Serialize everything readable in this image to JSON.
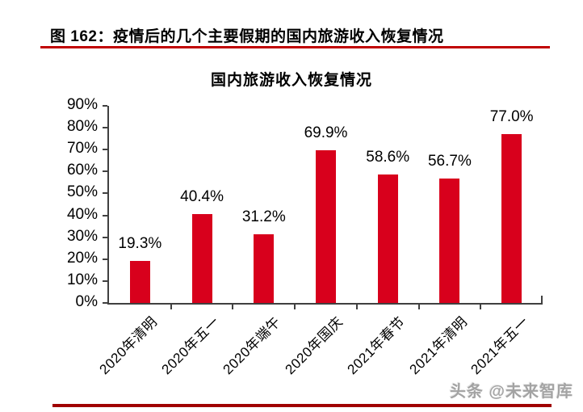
{
  "header": {
    "caption": "图 162：疫情后的几个主要假期的国内旅游收入恢复情况"
  },
  "chart_data": {
    "type": "bar",
    "title": "国内旅游收入恢复情况",
    "categories": [
      "2020年清明",
      "2020年五一",
      "2020年端午",
      "2020年国庆",
      "2021年春节",
      "2021年清明",
      "2021年五一"
    ],
    "values": [
      19.3,
      40.4,
      31.2,
      69.9,
      58.6,
      56.7,
      77.0
    ],
    "value_labels": [
      "19.3%",
      "40.4%",
      "31.2%",
      "69.9%",
      "58.6%",
      "56.7%",
      "77.0%"
    ],
    "xlabel": "",
    "ylabel": "",
    "ylim": [
      0,
      90
    ],
    "ytick_step": 10,
    "ytick_labels": [
      "0%",
      "10%",
      "20%",
      "30%",
      "40%",
      "50%",
      "60%",
      "70%",
      "80%",
      "90%"
    ],
    "grid": false,
    "legend": "none",
    "bar_color": "#d8001c"
  },
  "footer": {
    "watermark": "头条 @未来智库"
  },
  "colors": {
    "bar": "#d8001c",
    "caption_rule": "#c00000",
    "bottom_rule": "#a00000",
    "axis": "#404040",
    "watermark": "#a3a3a3",
    "text": "#000000"
  }
}
